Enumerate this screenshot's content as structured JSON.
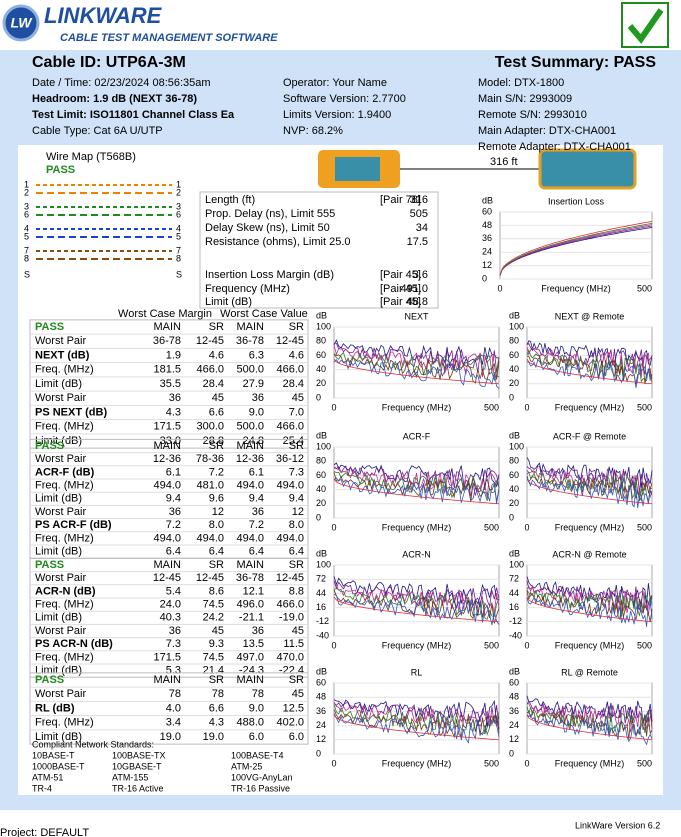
{
  "header": {
    "badge": "LW",
    "logo": "LINKWARE",
    "logo_sub": "CABLE TEST MANAGEMENT SOFTWARE"
  },
  "cable_id": "Cable ID: UTP6A-3M",
  "summary": "Test Summary: PASS",
  "info": {
    "left": [
      "Date / Time: 02/23/2024 08:56:35am",
      "Headroom: 1.9 dB (NEXT 36-78)",
      "Test Limit: ISO11801 Channel Class Ea",
      "Cable Type: Cat 6A U/UTP"
    ],
    "middle": [
      "Operator: Your Name",
      "Software Version: 2.7700",
      "Limits Version: 1.9400",
      "NVP: 68.2%"
    ],
    "right": [
      "Model: DTX-1800",
      "Main S/N: 2993009",
      "Remote S/N: 2993010",
      "Main Adapter: DTX-CHA001",
      "Remote Adapter: DTX-CHA001"
    ]
  },
  "wire_map": {
    "title": "Wire Map (T568B)",
    "result": "PASS",
    "pins": [
      "1",
      "2",
      "3",
      "6",
      "4",
      "5",
      "7",
      "8",
      "S"
    ]
  },
  "length_label": "316 ft",
  "measurements": [
    {
      "label": "Length (ft)",
      "pair": "[Pair 78]",
      "value": "316"
    },
    {
      "label": "Prop. Delay (ns), Limit 555",
      "value": "505"
    },
    {
      "label": "Delay Skew (ns), Limit 50",
      "value": "34"
    },
    {
      "label": "Resistance (ohms), Limit 25.0",
      "value": "17.5"
    },
    {
      "label": "Insertion Loss Margin (dB)",
      "pair": "[Pair 45]",
      "value": "3.6"
    },
    {
      "label": "Frequency (MHz)",
      "pair": "[Pair 45]",
      "value": "491.0"
    },
    {
      "label": "Limit (dB)",
      "pair": "[Pair 45]",
      "value": "48.8"
    }
  ],
  "column_groups": [
    "Worst Case Margin",
    "Worst Case Value"
  ],
  "tables": [
    {
      "header": [
        "PASS",
        "MAIN",
        "SR",
        "MAIN",
        "SR"
      ],
      "rows": [
        [
          "Worst Pair",
          "36-78",
          "12-45",
          "36-78",
          "12-45"
        ],
        [
          "NEXT (dB)",
          "1.9",
          "4.6",
          "6.3",
          "4.6"
        ],
        [
          "Freq. (MHz)",
          "181.5",
          "466.0",
          "500.0",
          "466.0"
        ],
        [
          "Limit (dB)",
          "35.5",
          "28.4",
          "27.9",
          "28.4"
        ],
        [
          "Worst Pair",
          "36",
          "45",
          "36",
          "45"
        ],
        [
          "PS NEXT (dB)",
          "4.3",
          "6.6",
          "9.0",
          "7.0"
        ],
        [
          "Freq. (MHz)",
          "171.5",
          "300.0",
          "500.0",
          "466.0"
        ],
        [
          "Limit (dB)",
          "33.0",
          "28.8",
          "24.8",
          "25.4"
        ]
      ]
    },
    {
      "header": [
        "PASS",
        "MAIN",
        "SR",
        "MAIN",
        "SR"
      ],
      "rows": [
        [
          "Worst Pair",
          "12-36",
          "78-36",
          "12-36",
          "36-12"
        ],
        [
          "ACR-F (dB)",
          "6.1",
          "7.2",
          "6.1",
          "7.3"
        ],
        [
          "Freq. (MHz)",
          "494.0",
          "481.0",
          "494.0",
          "494.0"
        ],
        [
          "Limit (dB)",
          "9.4",
          "9.6",
          "9.4",
          "9.4"
        ],
        [
          "Worst Pair",
          "36",
          "12",
          "36",
          "12"
        ],
        [
          "PS ACR-F (dB)",
          "7.2",
          "8.0",
          "7.2",
          "8.0"
        ],
        [
          "Freq. (MHz)",
          "494.0",
          "494.0",
          "494.0",
          "494.0"
        ],
        [
          "Limit (dB)",
          "6.4",
          "6.4",
          "6.4",
          "6.4"
        ]
      ]
    },
    {
      "header": [
        "PASS",
        "MAIN",
        "SR",
        "MAIN",
        "SR"
      ],
      "rows": [
        [
          "Worst Pair",
          "12-45",
          "12-45",
          "36-78",
          "12-45"
        ],
        [
          "ACR-N (dB)",
          "5.4",
          "8.6",
          "12.1",
          "8.8"
        ],
        [
          "Freq. (MHz)",
          "24.0",
          "74.5",
          "496.0",
          "466.0"
        ],
        [
          "Limit (dB)",
          "40.3",
          "24.2",
          "-21.1",
          "-19.0"
        ],
        [
          "Worst Pair",
          "36",
          "45",
          "36",
          "45"
        ],
        [
          "PS ACR-N (dB)",
          "7.3",
          "9.3",
          "13.5",
          "11.5"
        ],
        [
          "Freq. (MHz)",
          "171.5",
          "74.5",
          "497.0",
          "470.0"
        ],
        [
          "Limit (dB)",
          "5.3",
          "21.4",
          "-24.3",
          "-22.4"
        ]
      ]
    },
    {
      "header": [
        "PASS",
        "MAIN",
        "SR",
        "MAIN",
        "SR"
      ],
      "rows": [
        [
          "Worst Pair",
          "78",
          "78",
          "78",
          "45"
        ],
        [
          "RL (dB)",
          "4.0",
          "6.6",
          "9.0",
          "12.5"
        ],
        [
          "Freq. (MHz)",
          "3.4",
          "4.3",
          "488.0",
          "402.0"
        ],
        [
          "Limit (dB)",
          "19.0",
          "19.0",
          "6.0",
          "6.0"
        ]
      ]
    }
  ],
  "standards": {
    "title": "Compliant Network Standards:",
    "items": [
      "10BASE-T",
      "100BASE-TX",
      "100BASE-T4",
      "1000BASE-T",
      "10GBASE-T",
      "ATM-25",
      "ATM-51",
      "ATM-155",
      "100VG-AnyLan",
      "TR-4",
      "TR-16 Active",
      "TR-16 Passive"
    ]
  },
  "charts": [
    {
      "title": "Insertion Loss",
      "unit": "dB",
      "yticks": [
        60,
        48,
        36,
        24,
        12,
        0
      ],
      "xlabel": "Frequency (MHz)",
      "xticks": [
        0,
        500
      ]
    },
    {
      "title": "NEXT",
      "unit": "dB",
      "yticks": [
        100,
        80,
        60,
        40,
        20,
        0
      ],
      "xlabel": "Frequency (MHz)",
      "xticks": [
        0,
        500
      ]
    },
    {
      "title": "NEXT @ Remote",
      "unit": "dB",
      "yticks": [
        100,
        80,
        60,
        40,
        20,
        0
      ],
      "xlabel": "Frequency (MHz)",
      "xticks": [
        0,
        500
      ]
    },
    {
      "title": "ACR-F",
      "unit": "dB",
      "yticks": [
        100,
        80,
        60,
        40,
        20,
        0
      ],
      "xlabel": "Frequency (MHz)",
      "xticks": [
        0,
        500
      ]
    },
    {
      "title": "ACR-F @ Remote",
      "unit": "dB",
      "yticks": [
        100,
        80,
        60,
        40,
        20,
        0
      ],
      "xlabel": "Frequency (MHz)",
      "xticks": [
        0,
        500
      ]
    },
    {
      "title": "ACR-N",
      "unit": "dB",
      "yticks": [
        100,
        72,
        44,
        16,
        -12,
        -40
      ],
      "xlabel": "Frequency (MHz)",
      "xticks": [
        0,
        500
      ]
    },
    {
      "title": "ACR-N @ Remote",
      "unit": "dB",
      "yticks": [
        100,
        72,
        44,
        16,
        -12,
        -40
      ],
      "xlabel": "Frequency (MHz)",
      "xticks": [
        0,
        500
      ]
    },
    {
      "title": "RL",
      "unit": "dB",
      "yticks": [
        60,
        48,
        36,
        24,
        12,
        0
      ],
      "xlabel": "Frequency (MHz)",
      "xticks": [
        0,
        500
      ]
    },
    {
      "title": "RL @ Remote",
      "unit": "dB",
      "yticks": [
        60,
        48,
        36,
        24,
        12,
        0
      ],
      "xlabel": "Frequency (MHz)",
      "xticks": [
        0,
        500
      ]
    }
  ],
  "footer": {
    "version": "LinkWare Version  6.2",
    "project": "Project: DEFAULT"
  }
}
